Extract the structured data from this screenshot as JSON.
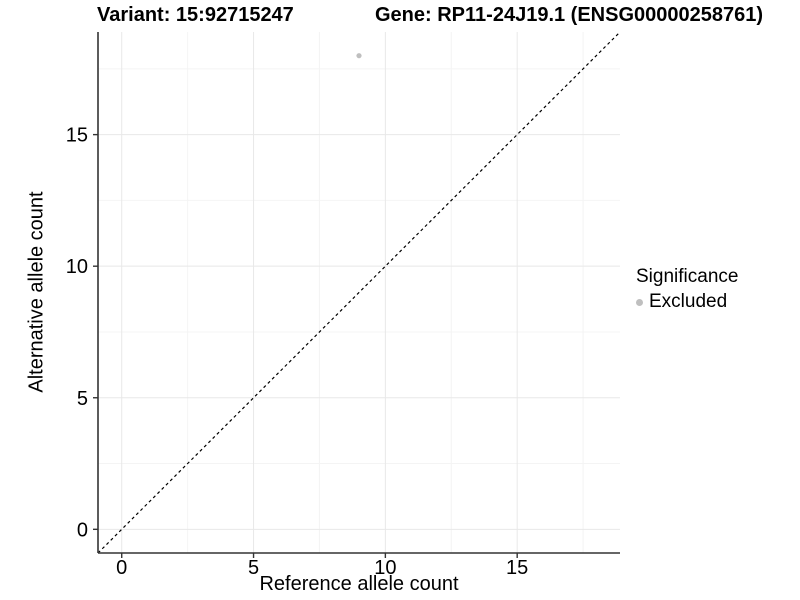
{
  "chart_data": {
    "type": "scatter",
    "titles": {
      "variant": "Variant: 15:92715247",
      "gene": "Gene: RP11-24J19.1 (ENSG00000258761)"
    },
    "xlabel": "Reference allele count",
    "ylabel": "Alternative allele count",
    "xlim": [
      -0.9,
      18.9
    ],
    "ylim": [
      -0.9,
      18.9
    ],
    "xticks": [
      0,
      5,
      10,
      15
    ],
    "yticks": [
      0,
      5,
      10,
      15
    ],
    "x_minor_ticks": [
      2.5,
      7.5,
      12.5,
      17.5
    ],
    "y_minor_ticks": [
      2.5,
      7.5,
      12.5,
      17.5
    ],
    "grid": true,
    "series": [
      {
        "name": "Excluded",
        "color": "#bfbfbf",
        "points": [
          {
            "x": 9,
            "y": 18
          }
        ]
      }
    ],
    "reference_line": {
      "type": "identity",
      "slope": 1,
      "intercept": 0,
      "style": "dashed",
      "color": "#000000"
    },
    "legend": {
      "position": "right",
      "title": "Significance",
      "items": [
        {
          "label": "Excluded",
          "color": "#bfbfbf",
          "marker": "point-icon"
        }
      ]
    },
    "colors": {
      "grid_major": "#e8e8e8",
      "grid_minor": "#f4f4f4",
      "axis_line": "#333333",
      "tick_mark": "#333333",
      "tick_label": "#000000",
      "background": "#ffffff"
    }
  }
}
